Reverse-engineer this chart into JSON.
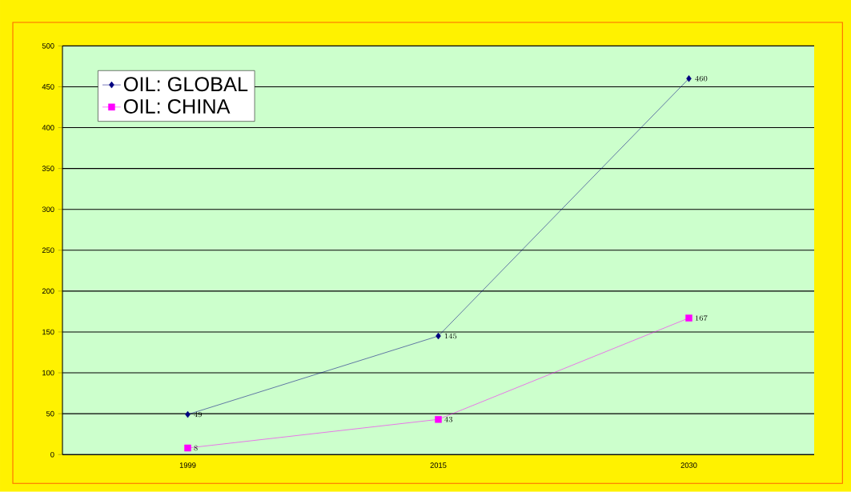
{
  "chart_data": {
    "type": "line",
    "categories": [
      "1999",
      "2015",
      "2030"
    ],
    "series": [
      {
        "name": "OIL: GLOBAL",
        "color": "#000080",
        "marker": "diamond",
        "values": [
          49,
          145,
          460
        ]
      },
      {
        "name": "OIL: CHINA",
        "color": "#ff00ff",
        "marker": "square",
        "values": [
          8,
          43,
          167
        ]
      }
    ],
    "ylim": [
      0,
      500
    ],
    "yticks": [
      0,
      50,
      100,
      150,
      200,
      250,
      300,
      350,
      400,
      450,
      500
    ],
    "grid": "y",
    "legend": "top left",
    "data_labels": true
  }
}
